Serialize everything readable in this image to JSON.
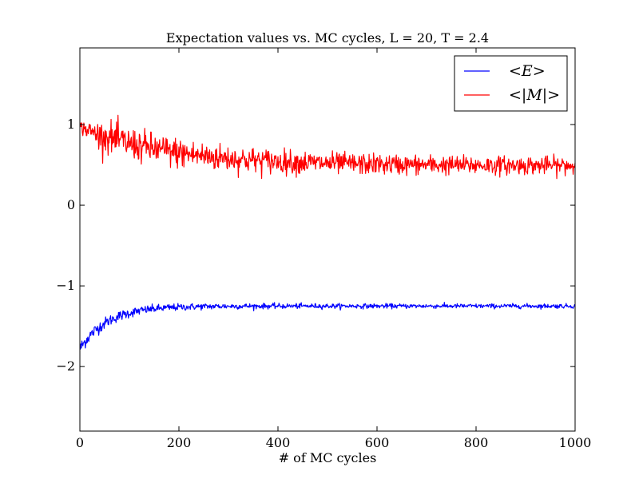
{
  "chart_data": {
    "type": "line",
    "title": "Expectation values vs. MC cycles, L = 20, T = 2.4",
    "xlabel": "# of MC cycles",
    "ylabel": "",
    "xlim": [
      0,
      1000
    ],
    "ylim": [
      -2.8,
      1.95
    ],
    "xticks": [
      0,
      200,
      400,
      600,
      800,
      1000
    ],
    "yticks": [
      -2,
      -1,
      0,
      1
    ],
    "xtick_labels": [
      "0",
      "200",
      "400",
      "600",
      "800",
      "1000"
    ],
    "ytick_labels": [
      "−2",
      "−1",
      "0",
      "1"
    ],
    "grid": false,
    "legend_position": "top-right",
    "series": [
      {
        "name": "<E>",
        "color": "#0000ff",
        "start": -1.78,
        "equilibrium": -1.25,
        "tau": 55,
        "noise_start": 0.08,
        "noise_end": 0.025,
        "n_points": 1000
      },
      {
        "name": "<|M|>",
        "color": "#ff0000",
        "start": 0.97,
        "equilibrium": 0.49,
        "tau": 180,
        "noise_start": 0.07,
        "noise_mid": 0.18,
        "noise_end": 0.09,
        "n_points": 1000
      }
    ]
  }
}
